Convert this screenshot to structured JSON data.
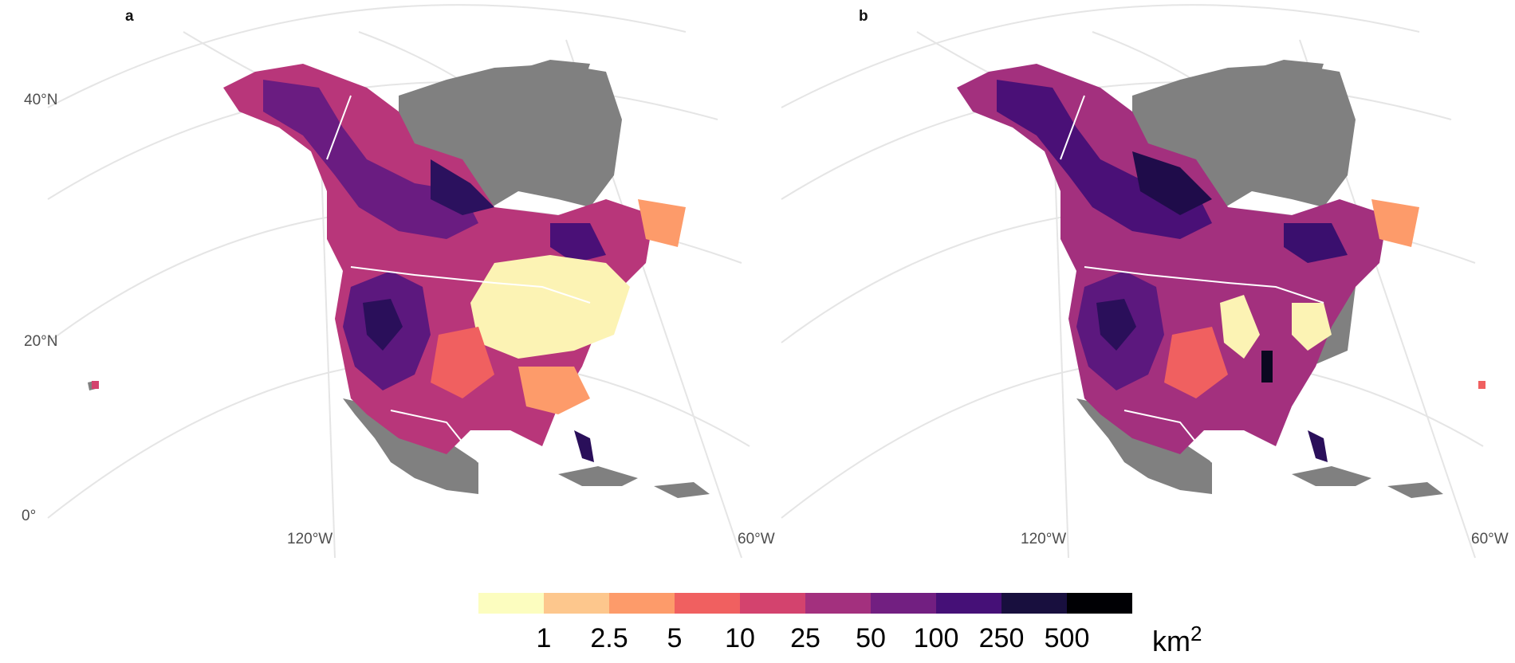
{
  "panels": [
    {
      "label": "a",
      "lat_labels": [
        "40°N",
        "20°N",
        "0°"
      ],
      "lon_labels": [
        "120°W",
        "60°W"
      ]
    },
    {
      "label": "b",
      "lat_labels": [],
      "lon_labels": [
        "120°W",
        "60°W"
      ]
    }
  ],
  "legend": {
    "ticks": [
      "1",
      "2.5",
      "5",
      "10",
      "25",
      "50",
      "100",
      "250",
      "500"
    ],
    "unit_base": "km",
    "unit_exp": "2",
    "colors": [
      "#fcfdbf",
      "#fdc78d",
      "#fd9b6a",
      "#f06060",
      "#d3436e",
      "#a3307e",
      "#721f81",
      "#451077",
      "#180f3e",
      "#000004"
    ]
  },
  "colors": {
    "land_no_data": "#808080",
    "graticule": "#e5e5e5",
    "border": "#ffffff",
    "background": "#ffffff"
  }
}
